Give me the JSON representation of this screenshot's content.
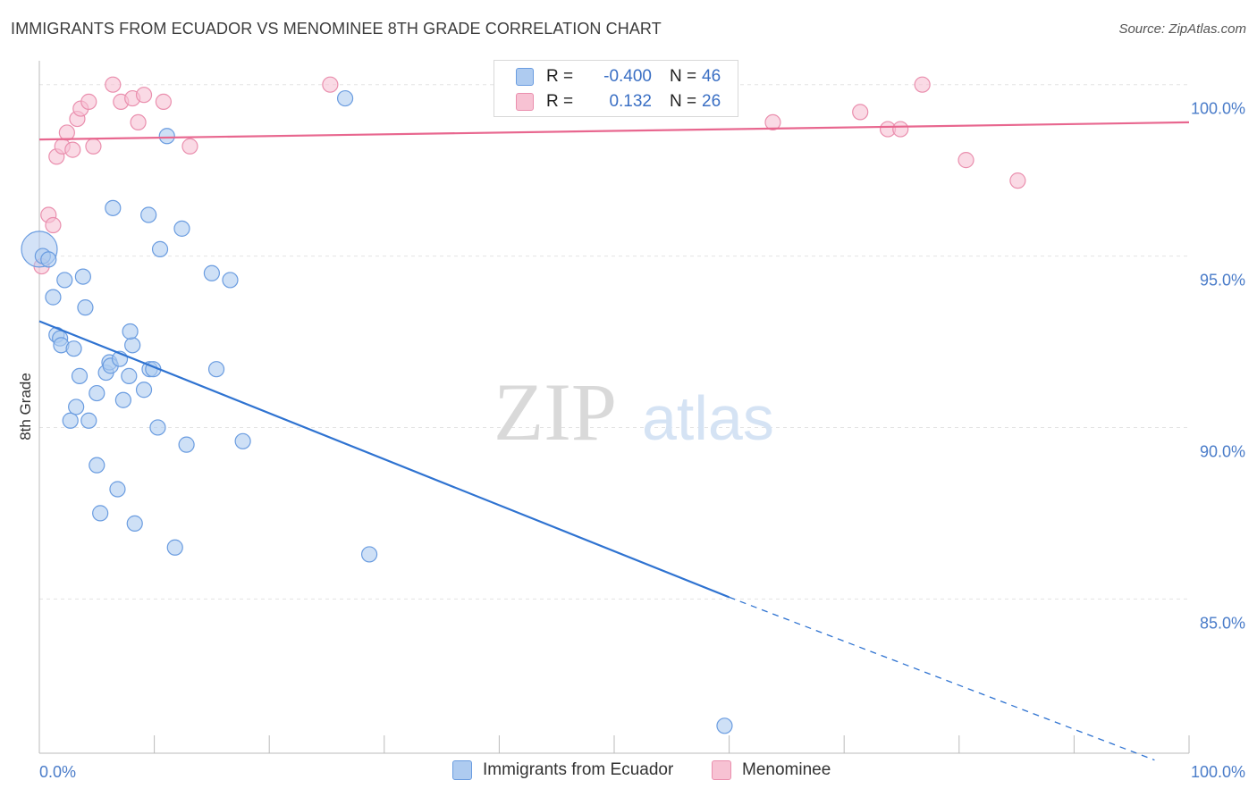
{
  "title": "IMMIGRANTS FROM ECUADOR VS MENOMINEE 8TH GRADE CORRELATION CHART",
  "source": "Source: ZipAtlas.com",
  "watermark": {
    "zip": "ZIP",
    "atlas": "atlas"
  },
  "legend": {
    "r_label": "R =",
    "n_label": "N =",
    "rows": [
      {
        "r": "-0.400",
        "n": "46",
        "fill": "#aecbf0",
        "stroke": "#6a9ce0"
      },
      {
        "r": "0.132",
        "n": "26",
        "fill": "#f7c2d3",
        "stroke": "#ea8fae"
      }
    ]
  },
  "colors": {
    "blue_fill": "#aecbf0",
    "blue_stroke": "#6a9ce0",
    "blue_line": "#2f73d1",
    "pink_fill": "#f7c2d3",
    "pink_stroke": "#ea8fae",
    "pink_line": "#e8678f",
    "tick_text": "#4a7cc9",
    "grid": "#e3e3e3"
  },
  "chart_data": {
    "type": "scatter",
    "title": "IMMIGRANTS FROM ECUADOR VS MENOMINEE 8TH GRADE CORRELATION CHART",
    "xlabel": "",
    "ylabel": "8th Grade",
    "xlim": [
      0,
      100
    ],
    "ylim": [
      80.5,
      100.8
    ],
    "x_tick_labels": [
      "0.0%",
      "100.0%"
    ],
    "y_ticks": [
      {
        "value": 100,
        "label": "100.0%"
      },
      {
        "value": 95,
        "label": "95.0%"
      },
      {
        "value": 90,
        "label": "90.0%"
      },
      {
        "value": 85,
        "label": "85.0%"
      }
    ],
    "series": [
      {
        "name": "Immigrants from Ecuador",
        "color": "#6a9ce0",
        "trend": {
          "x0": 0,
          "y0": 93.1,
          "x1": 60,
          "y1": 85.05,
          "dash_to_x": 97,
          "dash_to_y": 80.3
        },
        "points": [
          [
            0.0,
            95.2
          ],
          [
            0.3,
            95.0
          ],
          [
            0.8,
            94.9
          ],
          [
            1.2,
            93.8
          ],
          [
            2.2,
            94.3
          ],
          [
            3.8,
            94.4
          ],
          [
            4.0,
            93.5
          ],
          [
            1.5,
            92.7
          ],
          [
            1.8,
            92.6
          ],
          [
            1.9,
            92.4
          ],
          [
            3.0,
            92.3
          ],
          [
            3.5,
            91.5
          ],
          [
            5.0,
            91.0
          ],
          [
            5.8,
            91.6
          ],
          [
            6.1,
            91.9
          ],
          [
            6.2,
            91.8
          ],
          [
            7.0,
            92.0
          ],
          [
            7.3,
            90.8
          ],
          [
            7.8,
            91.5
          ],
          [
            8.1,
            92.4
          ],
          [
            7.9,
            92.8
          ],
          [
            9.1,
            91.1
          ],
          [
            9.6,
            91.7
          ],
          [
            9.9,
            91.7
          ],
          [
            10.3,
            90.0
          ],
          [
            2.7,
            90.2
          ],
          [
            3.2,
            90.6
          ],
          [
            4.3,
            90.2
          ],
          [
            5.0,
            88.9
          ],
          [
            5.3,
            87.5
          ],
          [
            6.8,
            88.2
          ],
          [
            8.3,
            87.2
          ],
          [
            10.5,
            95.2
          ],
          [
            9.5,
            96.2
          ],
          [
            6.4,
            96.4
          ],
          [
            12.4,
            95.8
          ],
          [
            12.8,
            89.5
          ],
          [
            15.0,
            94.5
          ],
          [
            16.6,
            94.3
          ],
          [
            15.4,
            91.7
          ],
          [
            17.7,
            89.6
          ],
          [
            11.1,
            98.5
          ],
          [
            11.8,
            86.5
          ],
          [
            28.7,
            86.3
          ],
          [
            26.6,
            99.6
          ],
          [
            59.6,
            81.3
          ]
        ]
      },
      {
        "name": "Menominee",
        "color": "#ea8fae",
        "trend": {
          "x0": 0,
          "y0": 98.4,
          "x1": 100,
          "y1": 98.9
        },
        "points": [
          [
            0.2,
            94.7
          ],
          [
            0.8,
            96.2
          ],
          [
            1.2,
            95.9
          ],
          [
            1.5,
            97.9
          ],
          [
            2.0,
            98.2
          ],
          [
            2.4,
            98.6
          ],
          [
            2.9,
            98.1
          ],
          [
            3.3,
            99.0
          ],
          [
            3.6,
            99.3
          ],
          [
            4.3,
            99.5
          ],
          [
            4.7,
            98.2
          ],
          [
            6.4,
            100.0
          ],
          [
            7.1,
            99.5
          ],
          [
            8.1,
            99.6
          ],
          [
            8.6,
            98.9
          ],
          [
            9.1,
            99.7
          ],
          [
            10.8,
            99.5
          ],
          [
            13.1,
            98.2
          ],
          [
            25.3,
            100.0
          ],
          [
            63.8,
            98.9
          ],
          [
            71.4,
            99.2
          ],
          [
            73.8,
            98.7
          ],
          [
            74.9,
            98.7
          ],
          [
            76.8,
            100.0
          ],
          [
            80.6,
            97.8
          ],
          [
            85.1,
            97.2
          ]
        ]
      }
    ]
  }
}
